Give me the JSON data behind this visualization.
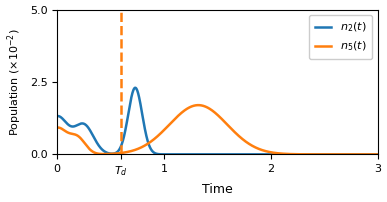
{
  "xlabel": "Time",
  "ylabel_text": "Population ($\\times10^{-2}$)",
  "xlim": [
    0,
    3
  ],
  "ylim": [
    0,
    5
  ],
  "yticks": [
    0,
    2.5,
    5
  ],
  "xticks": [
    0,
    0.6,
    1,
    2,
    3
  ],
  "xticklabels": [
    "0",
    "$T_d$",
    "1",
    "2",
    "3"
  ],
  "Td": 0.6,
  "color_n2": "#1f77b4",
  "color_n5": "#ff7f0e",
  "dashed_color": "#ff7f0e",
  "legend_labels": [
    "$n_2(t)$",
    "$n_5(t)$"
  ],
  "background": "#ffffff",
  "linewidth": 1.8
}
